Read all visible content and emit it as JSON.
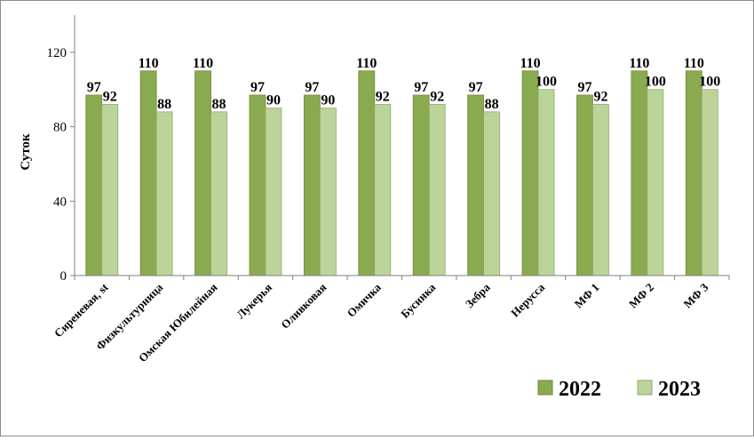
{
  "chart_data": {
    "type": "bar",
    "title": "",
    "xlabel": "",
    "ylabel": "Суток",
    "ylim": [
      0,
      140
    ],
    "yticks": [
      0,
      40,
      80,
      120
    ],
    "grid": false,
    "legend": "bottom-right",
    "categories": [
      "Сиреневая, st",
      "Физкультурница",
      "Омская Юбилейная",
      "Лукерья",
      "Оливковая",
      "Омичка",
      "Бусинка",
      "Зебра",
      "Нерусса",
      "МФ 1",
      "МФ 2",
      "МФ 3"
    ],
    "series": [
      {
        "name": "2022",
        "color": "#8aaa4f",
        "values": [
          97,
          110,
          110,
          97,
          97,
          110,
          97,
          97,
          110,
          97,
          110,
          110
        ]
      },
      {
        "name": "2023",
        "color": "#bcd49a",
        "values": [
          92,
          88,
          88,
          90,
          90,
          92,
          92,
          88,
          100,
          92,
          100,
          100
        ]
      }
    ]
  }
}
